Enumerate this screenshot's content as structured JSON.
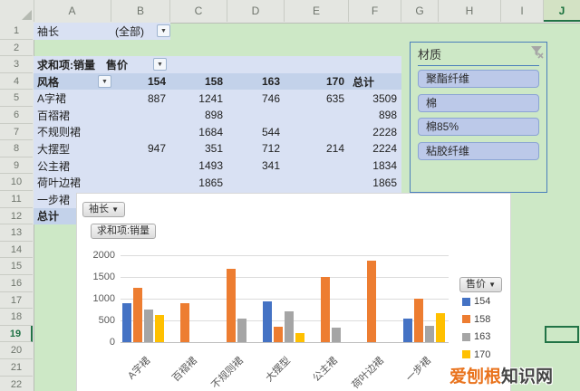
{
  "sheet": {
    "col_headers": [
      "A",
      "B",
      "C",
      "D",
      "E",
      "F",
      "G",
      "H",
      "I",
      "J"
    ],
    "row_count": 22,
    "selected_col": "J",
    "selected_row": 19
  },
  "pivot": {
    "filter_field": "袖长",
    "filter_value": "(全部)",
    "values_label": "求和项:销量",
    "col_field": "售价",
    "row_field": "风格",
    "col_headers": [
      "154",
      "158",
      "163",
      "170",
      "总计"
    ],
    "rows": [
      {
        "label": "A字裙",
        "values": [
          "887",
          "1241",
          "746",
          "635",
          "3509"
        ]
      },
      {
        "label": "百褶裙",
        "values": [
          "",
          "898",
          "",
          "",
          "898"
        ]
      },
      {
        "label": "不规则裙",
        "values": [
          "",
          "1684",
          "544",
          "",
          "2228"
        ]
      },
      {
        "label": "大摆型",
        "values": [
          "947",
          "351",
          "712",
          "214",
          "2224"
        ]
      },
      {
        "label": "公主裙",
        "values": [
          "",
          "1493",
          "341",
          "",
          "1834"
        ]
      },
      {
        "label": "荷叶边裙",
        "values": [
          "",
          "1865",
          "",
          "",
          "1865"
        ]
      },
      {
        "label": "一步裙",
        "values": [
          "",
          "",
          "",
          "",
          ""
        ]
      },
      {
        "label": "总计",
        "values": [
          "",
          "",
          "",
          "",
          ""
        ]
      }
    ]
  },
  "slicer": {
    "title": "材质",
    "items": [
      "聚酯纤维",
      "棉",
      "棉85%",
      "粘胶纤维"
    ]
  },
  "chart_data": {
    "type": "bar",
    "categories": [
      "A字裙",
      "百褶裙",
      "不规则裙",
      "大摆型",
      "公主裙",
      "荷叶边裙",
      "一步裙"
    ],
    "series": [
      {
        "name": "154",
        "color": "#4472C4",
        "values": [
          887,
          null,
          null,
          947,
          null,
          null,
          540
        ]
      },
      {
        "name": "158",
        "color": "#ED7D31",
        "values": [
          1241,
          898,
          1684,
          351,
          1493,
          1865,
          990
        ]
      },
      {
        "name": "163",
        "color": "#A5A5A5",
        "values": [
          746,
          null,
          544,
          712,
          341,
          null,
          365
        ]
      },
      {
        "name": "170",
        "color": "#FFC000",
        "values": [
          635,
          null,
          null,
          214,
          null,
          null,
          675
        ]
      }
    ],
    "title": "",
    "xlabel": "",
    "ylabel": "",
    "ylim": [
      0,
      2000
    ],
    "yticks": [
      0,
      500,
      1000,
      1500,
      2000
    ],
    "grid": true,
    "legend_position": "right",
    "field_buttons": {
      "axis": "袖长",
      "value": "求和项:销量",
      "legend": "售价"
    }
  },
  "watermark": {
    "part1": "爱刨根",
    "part2": "知识网"
  },
  "colors": {
    "sheet_bg": "#cde8c6",
    "selection_green": "#217346",
    "pivot_light": "#d9e1f3",
    "pivot_dark": "#c3d2ea",
    "slicer_border": "#4a7ebb",
    "slicer_item_bg": "#bcc9e9",
    "bar_blue": "#4472C4",
    "bar_orange": "#ED7D31",
    "bar_gray": "#A5A5A5",
    "bar_yellow": "#FFC000",
    "watermark_orange": "#e9731d"
  }
}
